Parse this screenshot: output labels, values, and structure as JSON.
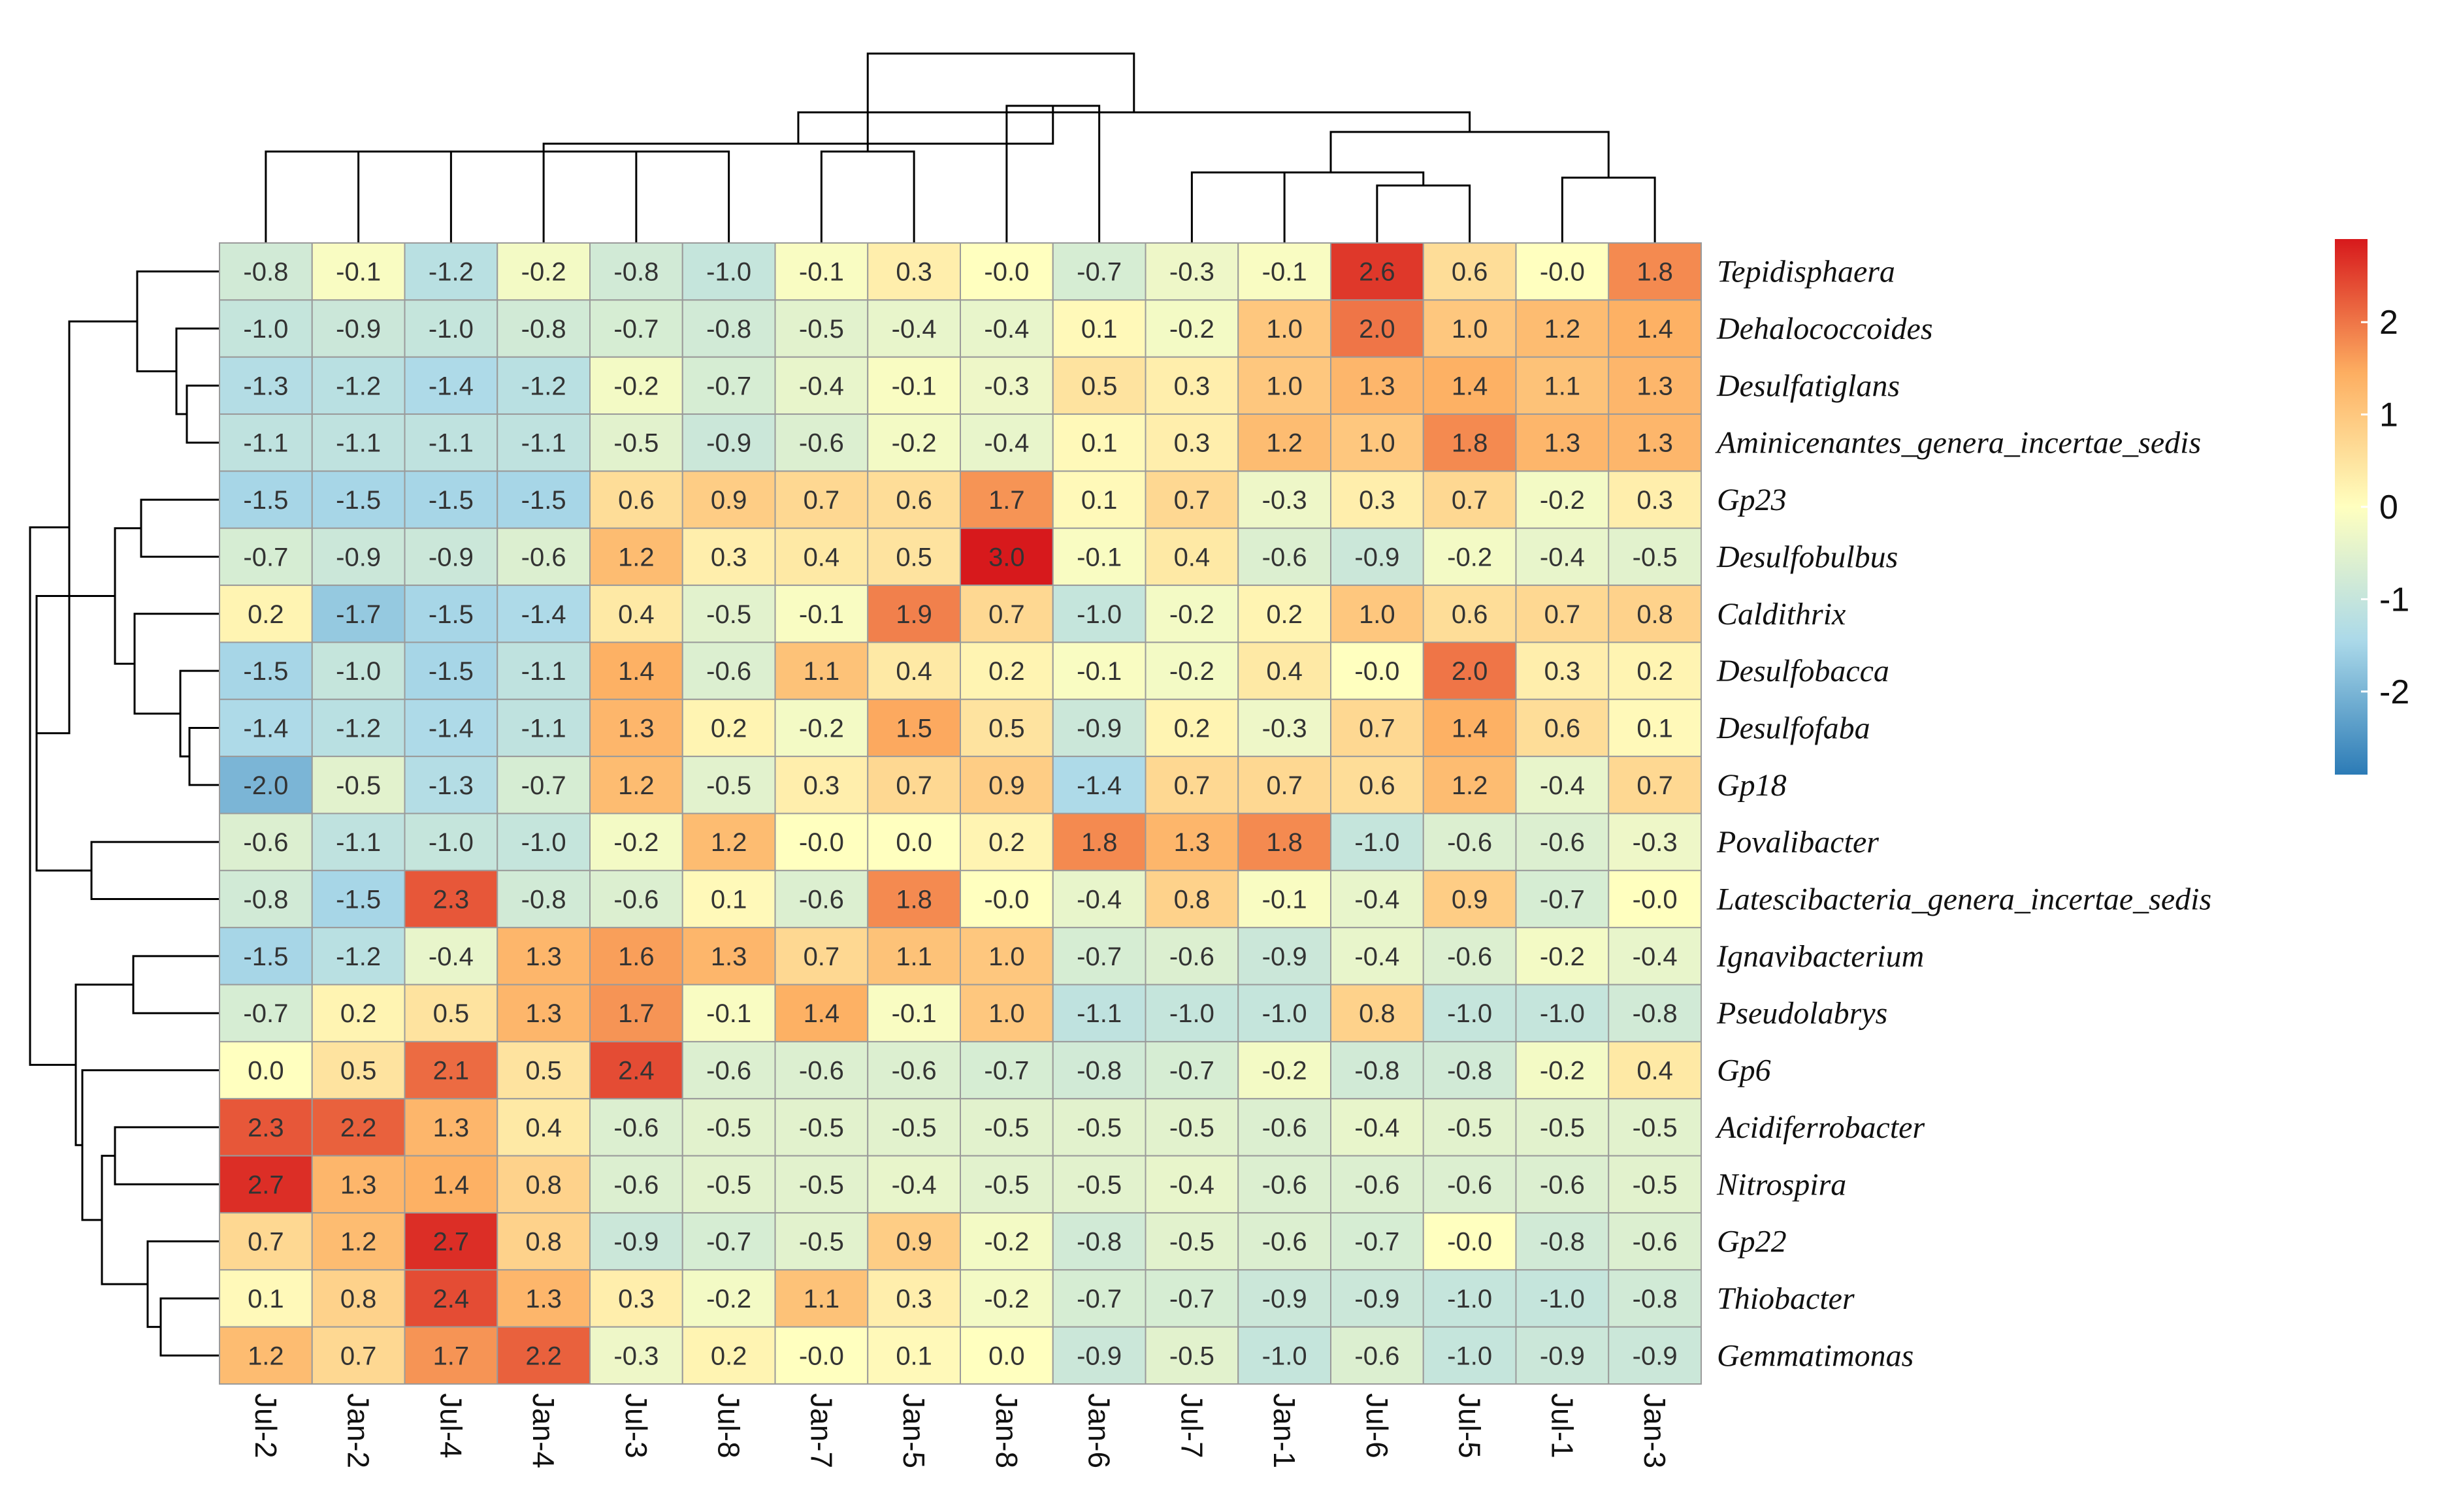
{
  "chart_data": {
    "type": "heatmap",
    "title": "",
    "columns": [
      "Jul-2",
      "Jan-2",
      "Jul-4",
      "Jan-4",
      "Jul-3",
      "Jul-8",
      "Jan-7",
      "Jan-5",
      "Jan-8",
      "Jan-6",
      "Jul-7",
      "Jan-1",
      "Jul-6",
      "Jul-5",
      "Jul-1",
      "Jan-3"
    ],
    "rows": [
      "Tepidisphaera",
      "Dehalococcoides",
      "Desulfatiglans",
      "Aminicenantes_genera_incertae_sedis",
      "Gp23",
      "Desulfobulbus",
      "Caldithrix",
      "Desulfobacca",
      "Desulfofaba",
      "Gp18",
      "Povalibacter",
      "Latescibacteria_genera_incertae_sedis",
      "Ignavibacterium",
      "Pseudolabrys",
      "Gp6",
      "Acidiferrobacter",
      "Nitrospira",
      "Gp22",
      "Thiobacter",
      "Gemmatimonas"
    ],
    "values": [
      [
        "-0.8",
        "-0.1",
        "-1.2",
        "-0.2",
        "-0.8",
        "-1.0",
        "-0.1",
        "0.3",
        "-0.0",
        "-0.7",
        "-0.3",
        "-0.1",
        "2.6",
        "0.6",
        "-0.0",
        "1.8"
      ],
      [
        "-1.0",
        "-0.9",
        "-1.0",
        "-0.8",
        "-0.7",
        "-0.8",
        "-0.5",
        "-0.4",
        "-0.4",
        "0.1",
        "-0.2",
        "1.0",
        "2.0",
        "1.0",
        "1.2",
        "1.4"
      ],
      [
        "-1.3",
        "-1.2",
        "-1.4",
        "-1.2",
        "-0.2",
        "-0.7",
        "-0.4",
        "-0.1",
        "-0.3",
        "0.5",
        "0.3",
        "1.0",
        "1.3",
        "1.4",
        "1.1",
        "1.3"
      ],
      [
        "-1.1",
        "-1.1",
        "-1.1",
        "-1.1",
        "-0.5",
        "-0.9",
        "-0.6",
        "-0.2",
        "-0.4",
        "0.1",
        "0.3",
        "1.2",
        "1.0",
        "1.8",
        "1.3",
        "1.3"
      ],
      [
        "-1.5",
        "-1.5",
        "-1.5",
        "-1.5",
        "0.6",
        "0.9",
        "0.7",
        "0.6",
        "1.7",
        "0.1",
        "0.7",
        "-0.3",
        "0.3",
        "0.7",
        "-0.2",
        "0.3"
      ],
      [
        "-0.7",
        "-0.9",
        "-0.9",
        "-0.6",
        "1.2",
        "0.3",
        "0.4",
        "0.5",
        "3.0",
        "-0.1",
        "0.4",
        "-0.6",
        "-0.9",
        "-0.2",
        "-0.4",
        "-0.5"
      ],
      [
        "0.2",
        "-1.7",
        "-1.5",
        "-1.4",
        "0.4",
        "-0.5",
        "-0.1",
        "1.9",
        "0.7",
        "-1.0",
        "-0.2",
        "0.2",
        "1.0",
        "0.6",
        "0.7",
        "0.8"
      ],
      [
        "-1.5",
        "-1.0",
        "-1.5",
        "-1.1",
        "1.4",
        "-0.6",
        "1.1",
        "0.4",
        "0.2",
        "-0.1",
        "-0.2",
        "0.4",
        "-0.0",
        "2.0",
        "0.3",
        "0.2"
      ],
      [
        "-1.4",
        "-1.2",
        "-1.4",
        "-1.1",
        "1.3",
        "0.2",
        "-0.2",
        "1.5",
        "0.5",
        "-0.9",
        "0.2",
        "-0.3",
        "0.7",
        "1.4",
        "0.6",
        "0.1"
      ],
      [
        "-2.0",
        "-0.5",
        "-1.3",
        "-0.7",
        "1.2",
        "-0.5",
        "0.3",
        "0.7",
        "0.9",
        "-1.4",
        "0.7",
        "0.7",
        "0.6",
        "1.2",
        "-0.4",
        "0.7"
      ],
      [
        "-0.6",
        "-1.1",
        "-1.0",
        "-1.0",
        "-0.2",
        "1.2",
        "-0.0",
        "0.0",
        "0.2",
        "1.8",
        "1.3",
        "1.8",
        "-1.0",
        "-0.6",
        "-0.6",
        "-0.3"
      ],
      [
        "-0.8",
        "-1.5",
        "2.3",
        "-0.8",
        "-0.6",
        "0.1",
        "-0.6",
        "1.8",
        "-0.0",
        "-0.4",
        "0.8",
        "-0.1",
        "-0.4",
        "0.9",
        "-0.7",
        "-0.0"
      ],
      [
        "-1.5",
        "-1.2",
        "-0.4",
        "1.3",
        "1.6",
        "1.3",
        "0.7",
        "1.1",
        "1.0",
        "-0.7",
        "-0.6",
        "-0.9",
        "-0.4",
        "-0.6",
        "-0.2",
        "-0.4"
      ],
      [
        "-0.7",
        "0.2",
        "0.5",
        "1.3",
        "1.7",
        "-0.1",
        "1.4",
        "-0.1",
        "1.0",
        "-1.1",
        "-1.0",
        "-1.0",
        "0.8",
        "-1.0",
        "-1.0",
        "-0.8"
      ],
      [
        "0.0",
        "0.5",
        "2.1",
        "0.5",
        "2.4",
        "-0.6",
        "-0.6",
        "-0.6",
        "-0.7",
        "-0.8",
        "-0.7",
        "-0.2",
        "-0.8",
        "-0.8",
        "-0.2",
        "0.4"
      ],
      [
        "2.3",
        "2.2",
        "1.3",
        "0.4",
        "-0.6",
        "-0.5",
        "-0.5",
        "-0.5",
        "-0.5",
        "-0.5",
        "-0.5",
        "-0.6",
        "-0.4",
        "-0.5",
        "-0.5",
        "-0.5"
      ],
      [
        "2.7",
        "1.3",
        "1.4",
        "0.8",
        "-0.6",
        "-0.5",
        "-0.5",
        "-0.4",
        "-0.5",
        "-0.5",
        "-0.4",
        "-0.6",
        "-0.6",
        "-0.6",
        "-0.6",
        "-0.5"
      ],
      [
        "0.7",
        "1.2",
        "2.7",
        "0.8",
        "-0.9",
        "-0.7",
        "-0.5",
        "0.9",
        "-0.2",
        "-0.8",
        "-0.5",
        "-0.6",
        "-0.7",
        "-0.0",
        "-0.8",
        "-0.6"
      ],
      [
        "0.1",
        "0.8",
        "2.4",
        "1.3",
        "0.3",
        "-0.2",
        "1.1",
        "0.3",
        "-0.2",
        "-0.7",
        "-0.7",
        "-0.9",
        "-0.9",
        "-1.0",
        "-1.0",
        "-0.8"
      ],
      [
        "1.2",
        "0.7",
        "1.7",
        "2.2",
        "-0.3",
        "0.2",
        "-0.0",
        "0.1",
        "0.0",
        "-0.9",
        "-0.5",
        "-1.0",
        "-0.6",
        "-1.0",
        "-0.9",
        "-0.9"
      ]
    ],
    "color_scale": {
      "min": -2.9,
      "max": 2.9,
      "stops": [
        "#2C7BB6",
        "#ABD9E9",
        "#FFFFBF",
        "#FDAE61",
        "#D7191C"
      ]
    },
    "legend": {
      "ticks": [
        2,
        1,
        0,
        -1,
        -2
      ],
      "tick_labels": [
        "2",
        "1",
        "0",
        "-1",
        "-2"
      ]
    },
    "column_dendrogram": [
      [
        0,
        1
      ],
      [
        2,
        3
      ],
      [
        16,
        17
      ],
      [
        4,
        5
      ],
      [
        6,
        7
      ],
      [
        10,
        11
      ],
      [
        12,
        13
      ],
      [
        14,
        15
      ],
      [
        18,
        19
      ],
      [
        8,
        9
      ],
      [
        21,
        22
      ],
      [
        24,
        25
      ],
      [
        23,
        26
      ],
      [
        27,
        28
      ],
      [
        20,
        29
      ]
    ],
    "row_dendrogram": [
      [
        2,
        3
      ],
      [
        1,
        20
      ],
      [
        0,
        21
      ],
      [
        8,
        9
      ],
      [
        7,
        23
      ],
      [
        6,
        24
      ],
      [
        4,
        5
      ],
      [
        26,
        25
      ],
      [
        12,
        13
      ],
      [
        18,
        19
      ],
      [
        17,
        29
      ],
      [
        15,
        16
      ],
      [
        31,
        30
      ],
      [
        14,
        32
      ],
      [
        28,
        33
      ],
      [
        10,
        11
      ],
      [
        27,
        35
      ],
      [
        22,
        36
      ],
      [
        37,
        34
      ]
    ]
  }
}
